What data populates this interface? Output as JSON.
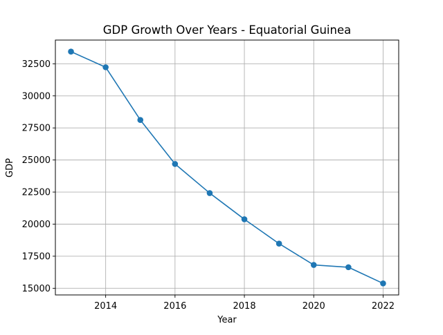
{
  "chart_data": {
    "type": "line",
    "title": "GDP Growth Over Years - Equatorial Guinea",
    "xlabel": "Year",
    "ylabel": "GDP",
    "x": [
      2013,
      2014,
      2015,
      2016,
      2017,
      2018,
      2019,
      2020,
      2021,
      2022
    ],
    "series": [
      {
        "values": [
          33450,
          32230,
          28120,
          24690,
          22420,
          20380,
          18480,
          16820,
          16640,
          15380
        ],
        "color": "#1f77b4",
        "marker": "circle"
      }
    ],
    "xlim": [
      2012.55,
      2022.45
    ],
    "ylim": [
      14480,
      34350
    ],
    "xticks": [
      2014,
      2016,
      2018,
      2020,
      2022
    ],
    "xtick_labels": [
      "2014",
      "2016",
      "2018",
      "2020",
      "2022"
    ],
    "yticks": [
      15000,
      17500,
      20000,
      22500,
      25000,
      27500,
      30000,
      32500
    ],
    "ytick_labels": [
      "15000",
      "17500",
      "20000",
      "22500",
      "25000",
      "27500",
      "30000",
      "32500"
    ],
    "grid": true,
    "legend": "none"
  }
}
